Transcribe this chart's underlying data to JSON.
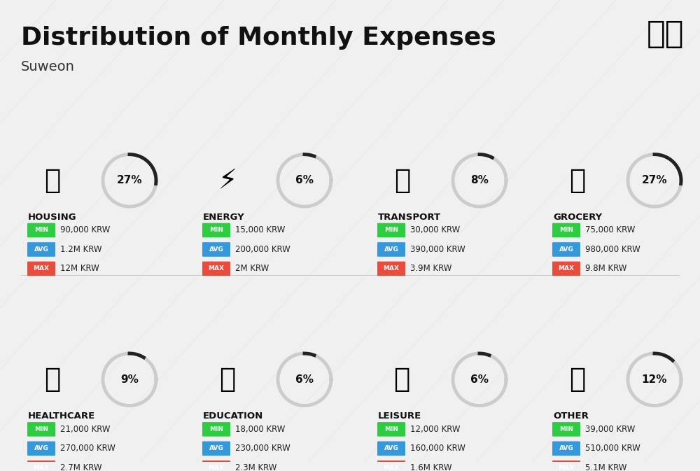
{
  "title": "Distribution of Monthly Expenses",
  "subtitle": "Suweon",
  "background_color": "#f0f0f0",
  "categories": [
    {
      "name": "HOUSING",
      "pct": 27,
      "emoji": "🏢",
      "min": "90,000 KRW",
      "avg": "1.2M KRW",
      "max": "12M KRW",
      "row": 0,
      "col": 0
    },
    {
      "name": "ENERGY",
      "pct": 6,
      "emoji": "🔌",
      "min": "15,000 KRW",
      "avg": "200,000 KRW",
      "max": "2M KRW",
      "row": 0,
      "col": 1
    },
    {
      "name": "TRANSPORT",
      "pct": 8,
      "emoji": "🚌",
      "min": "30,000 KRW",
      "avg": "390,000 KRW",
      "max": "3.9M KRW",
      "row": 0,
      "col": 2
    },
    {
      "name": "GROCERY",
      "pct": 27,
      "emoji": "🛒",
      "min": "75,000 KRW",
      "avg": "980,000 KRW",
      "max": "9.8M KRW",
      "row": 0,
      "col": 3
    },
    {
      "name": "HEALTHCARE",
      "pct": 9,
      "emoji": "❤️",
      "min": "21,000 KRW",
      "avg": "270,000 KRW",
      "max": "2.7M KRW",
      "row": 1,
      "col": 0
    },
    {
      "name": "EDUCATION",
      "pct": 6,
      "emoji": "🎓",
      "min": "18,000 KRW",
      "avg": "230,000 KRW",
      "max": "2.3M KRW",
      "row": 1,
      "col": 1
    },
    {
      "name": "LEISURE",
      "pct": 6,
      "emoji": "🛍️",
      "min": "12,000 KRW",
      "avg": "160,000 KRW",
      "max": "1.6M KRW",
      "row": 1,
      "col": 2
    },
    {
      "name": "OTHER",
      "pct": 12,
      "emoji": "👜",
      "min": "39,000 KRW",
      "avg": "510,000 KRW",
      "max": "5.1M KRW",
      "row": 1,
      "col": 3
    }
  ],
  "min_color": "#2ecc40",
  "avg_color": "#3498db",
  "max_color": "#e74c3c",
  "arc_color_dark": "#222222",
  "arc_color_light": "#cccccc",
  "label_colors": {
    "MIN": "#27ae60",
    "AVG": "#2980b9",
    "MAX": "#c0392b"
  }
}
